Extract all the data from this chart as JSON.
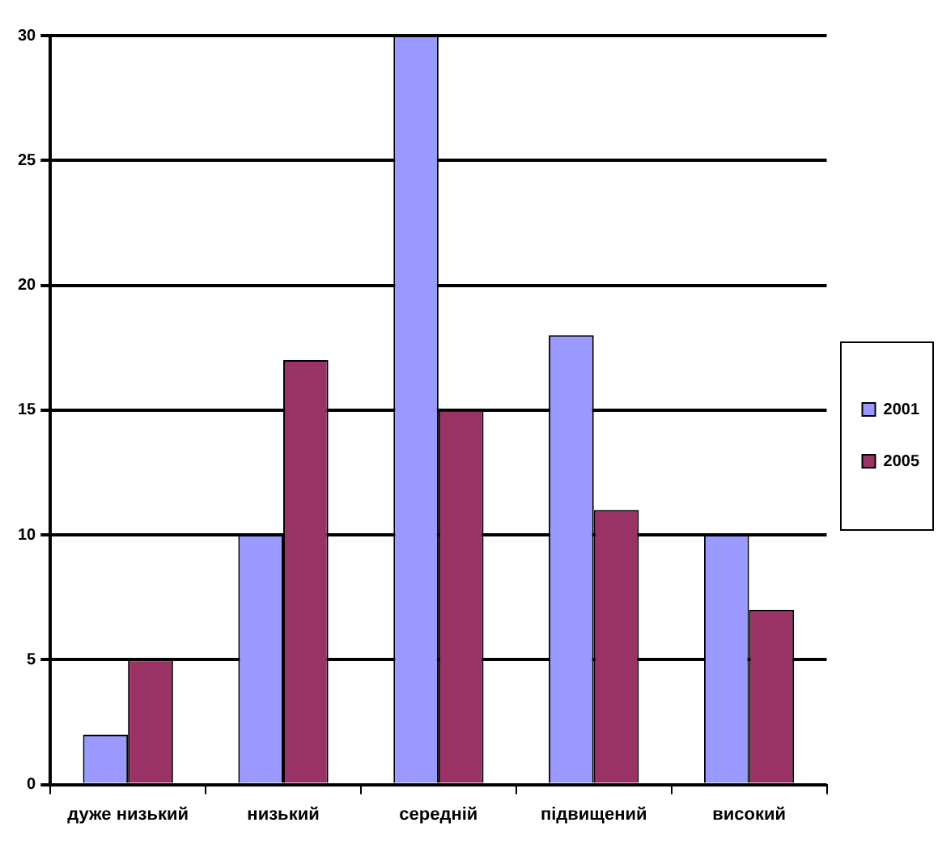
{
  "chart_data": {
    "type": "bar",
    "categories": [
      "дуже низький",
      "низький",
      "середній",
      "підвищений",
      "високий"
    ],
    "series": [
      {
        "name": "2001",
        "color": "#9999ff",
        "values": [
          2,
          10,
          30,
          18,
          10
        ]
      },
      {
        "name": "2005",
        "color": "#993366",
        "values": [
          5,
          17,
          15,
          11,
          7
        ]
      }
    ],
    "ylim": [
      0,
      30
    ],
    "yticks": [
      0,
      5,
      10,
      15,
      20,
      25,
      30
    ],
    "grid": "y",
    "legend": "right"
  }
}
